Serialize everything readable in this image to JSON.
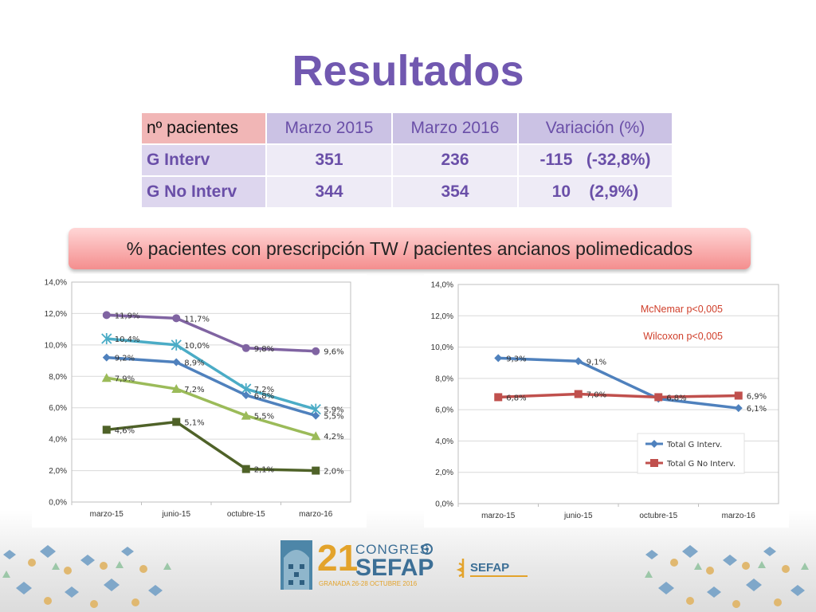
{
  "title": "Resultados",
  "table": {
    "headers": [
      "nº pacientes",
      "Marzo 2015",
      "Marzo 2016",
      "Variación (%)"
    ],
    "rows": [
      {
        "label": "G Interv",
        "marzo2015": "351",
        "marzo2016": "236",
        "variacion": "-115   (-32,8%)"
      },
      {
        "label": "G No Interv",
        "marzo2015": "344",
        "marzo2016": "354",
        "variacion": "10    (2,9%)"
      }
    ]
  },
  "banner": "% pacientes con prescripción TW / pacientes ancianos polimedicados",
  "footer": {
    "congress_number": "21",
    "congress_word": "CONGRES",
    "congress_name": "SEFAP",
    "congress_place": "GRANADA 26-28 OCTUBRE 2016",
    "sefap_logo": "SEFAP"
  },
  "chart_data": [
    {
      "type": "line",
      "categories": [
        "marzo-15",
        "junio-15",
        "octubre-15",
        "marzo-16"
      ],
      "ylim": [
        0,
        14
      ],
      "yticks": [
        "0,0%",
        "2,0%",
        "4,0%",
        "6,0%",
        "8,0%",
        "10,0%",
        "12,0%",
        "14,0%"
      ],
      "legend": "none",
      "series": [
        {
          "color": "#8064a2",
          "marker": "circle",
          "values": [
            11.9,
            11.7,
            9.8,
            9.6
          ],
          "labels": [
            "11,9%",
            "11,7%",
            "9,8%",
            "9,6%"
          ]
        },
        {
          "color": "#4bacc6",
          "marker": "star",
          "values": [
            10.4,
            10.0,
            7.2,
            5.9
          ],
          "labels": [
            "10,4%",
            "10,0%",
            "7,2%",
            "5,9%"
          ]
        },
        {
          "color": "#4f81bd",
          "marker": "diamond",
          "values": [
            9.2,
            8.9,
            6.8,
            5.5
          ],
          "labels": [
            "9,2%",
            "8,9%",
            "6,8%",
            "5,5%"
          ]
        },
        {
          "color": "#9bbb59",
          "marker": "triangle",
          "values": [
            7.9,
            7.2,
            5.5,
            4.2
          ],
          "labels": [
            "7,9%",
            "7,2%",
            "5,5%",
            "4,2%"
          ]
        },
        {
          "color": "#4f6228",
          "marker": "square",
          "values": [
            4.6,
            5.1,
            2.1,
            2.0
          ],
          "labels": [
            "4,6%",
            "5,1%",
            "2,1%",
            "2,0%"
          ]
        }
      ]
    },
    {
      "type": "line",
      "categories": [
        "marzo-15",
        "junio-15",
        "octubre-15",
        "marzo-16"
      ],
      "ylim": [
        0,
        14
      ],
      "yticks": [
        "0,0%",
        "2,0%",
        "4,0%",
        "6,0%",
        "8,0%",
        "10,0%",
        "12,0%",
        "14,0%"
      ],
      "legend": "bottom-right",
      "annotations": [
        "McNemar p<0,005",
        "Wilcoxon p<0,005"
      ],
      "annotation_color": "#d0402c",
      "series": [
        {
          "name": "Total G Interv.",
          "color": "#4f81bd",
          "marker": "diamond",
          "values": [
            9.3,
            9.1,
            6.7,
            6.1
          ],
          "labels": [
            "9,3%",
            "9,1%",
            "",
            "6,1%"
          ]
        },
        {
          "name": "Total G No Interv.",
          "color": "#c0504d",
          "marker": "square",
          "values": [
            6.8,
            7.0,
            6.8,
            6.9
          ],
          "labels": [
            "6,8%",
            "7,0%",
            "6,8%",
            "6,9%"
          ]
        }
      ]
    }
  ]
}
